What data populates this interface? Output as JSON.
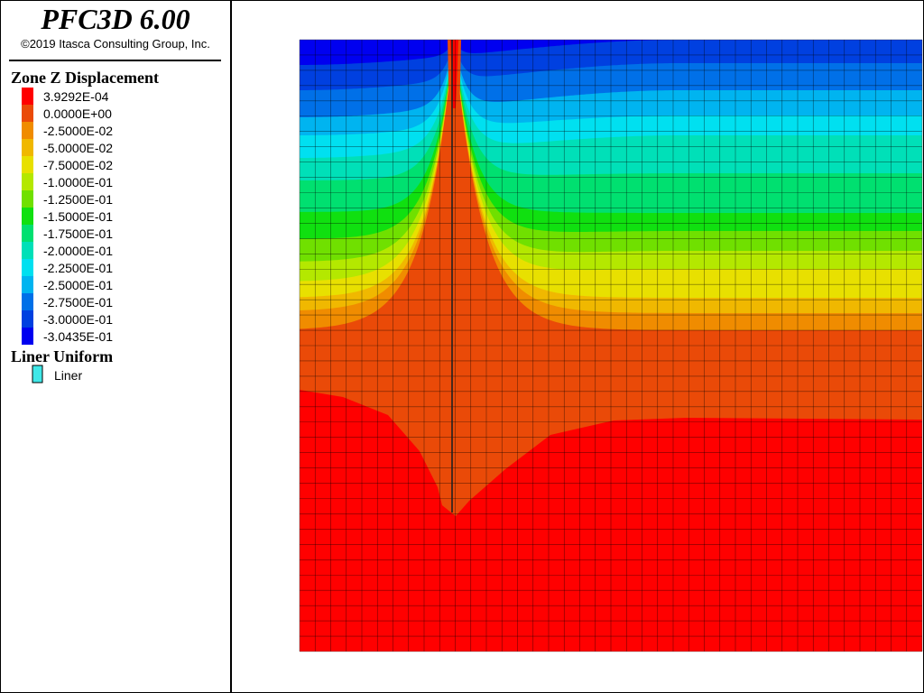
{
  "header": {
    "title": "PFC3D 6.00",
    "copyright": "©2019 Itasca Consulting Group, Inc."
  },
  "legend": {
    "title": "Zone Z Displacement",
    "items": [
      {
        "label": "3.9292E-04",
        "color": "#ff0000"
      },
      {
        "label": "0.0000E+00",
        "color": "#ea4a08"
      },
      {
        "label": "-2.5000E-02",
        "color": "#f08c00"
      },
      {
        "label": "-5.0000E-02",
        "color": "#f0b800"
      },
      {
        "label": "-7.5000E-02",
        "color": "#e8e000"
      },
      {
        "label": "-1.0000E-01",
        "color": "#b4e800"
      },
      {
        "label": "-1.2500E-01",
        "color": "#70e000"
      },
      {
        "label": "-1.5000E-01",
        "color": "#10e010"
      },
      {
        "label": "-1.7500E-01",
        "color": "#00e070"
      },
      {
        "label": "-2.0000E-01",
        "color": "#00e0b8"
      },
      {
        "label": "-2.2500E-01",
        "color": "#00e0f0"
      },
      {
        "label": "-2.5000E-01",
        "color": "#00b4f0"
      },
      {
        "label": "-2.7500E-01",
        "color": "#0070e8"
      },
      {
        "label": "-3.0000E-01",
        "color": "#0040e0"
      },
      {
        "label": "-3.0435E-01",
        "color": "#0000f0"
      }
    ]
  },
  "liner_legend": {
    "title": "Liner Uniform",
    "items": [
      {
        "label": "Liner",
        "color": "#40e8e8"
      }
    ]
  }
}
